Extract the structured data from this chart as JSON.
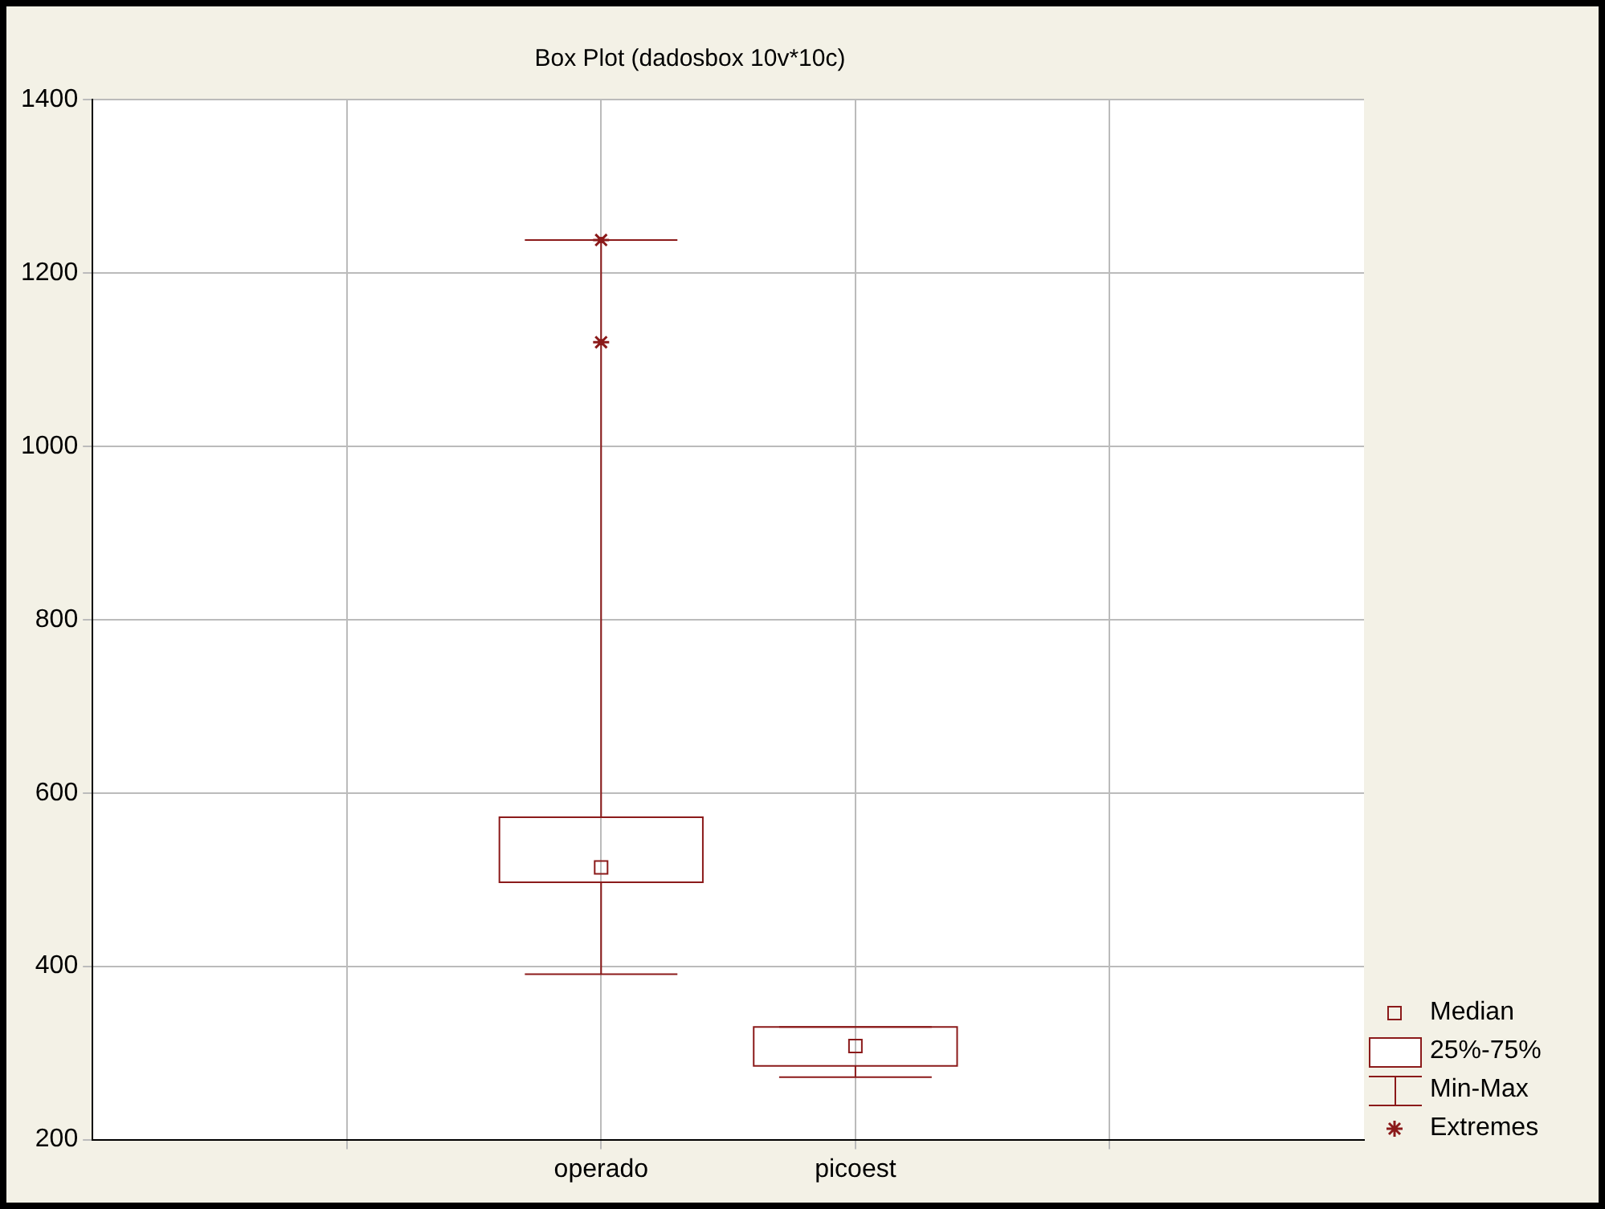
{
  "chart_data": {
    "type": "box",
    "title": "Box Plot (dadosbox 10v*10c)",
    "categories": [
      null,
      "operado",
      "picoest",
      null
    ],
    "boxes": [
      null,
      {
        "low": 391,
        "q1": 497,
        "median": 514,
        "q3": 572,
        "high": 1238,
        "outliers": [
          1238,
          1120
        ]
      },
      {
        "low": 272,
        "q1": 285,
        "median": 308,
        "q3": 330,
        "high": 330
      },
      null
    ],
    "color": "#8b1a1a",
    "ylim": [
      200,
      1400
    ],
    "yticks": [
      200,
      400,
      600,
      800,
      1000,
      1200,
      1400
    ],
    "grid": true,
    "marker": "square",
    "annotations": [
      "Median",
      "25%-75%",
      "Min-Max",
      "Extremes"
    ]
  }
}
